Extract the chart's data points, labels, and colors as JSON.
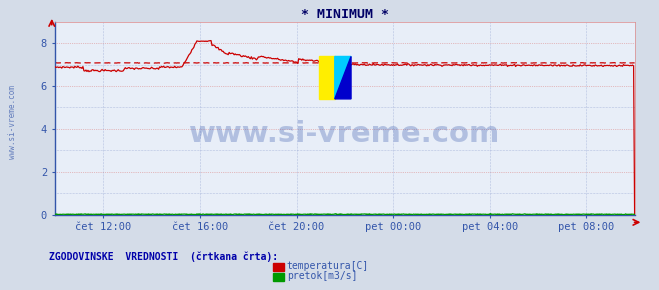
{
  "title": "* MINIMUM *",
  "bg_color": "#d4dce8",
  "plot_bg_color": "#e8eef8",
  "ylim": [
    0,
    9
  ],
  "yticks": [
    0,
    2,
    4,
    6,
    8
  ],
  "xlabel_ticks": [
    "čet 12:00",
    "čet 16:00",
    "čet 20:00",
    "pet 00:00",
    "pet 04:00",
    "pet 08:00"
  ],
  "temp_color": "#cc0000",
  "flow_color": "#009900",
  "hist_color": "#cc0000",
  "hist_flow_color": "#009900",
  "watermark": "www.si-vreme.com",
  "watermark_color": "#3355aa",
  "side_text": "www.si-vreme.com",
  "legend_title": "ZGODOVINSKE  VREDNOSTI  (črtkana črta):",
  "legend_temp": "temperatura[C]",
  "legend_flow": "pretok[m3/s]",
  "title_color": "#000066",
  "axis_color": "#3355aa",
  "label_color": "#3355aa",
  "grid_red": "#dd8888",
  "grid_blue": "#8899cc",
  "n_points": 576
}
